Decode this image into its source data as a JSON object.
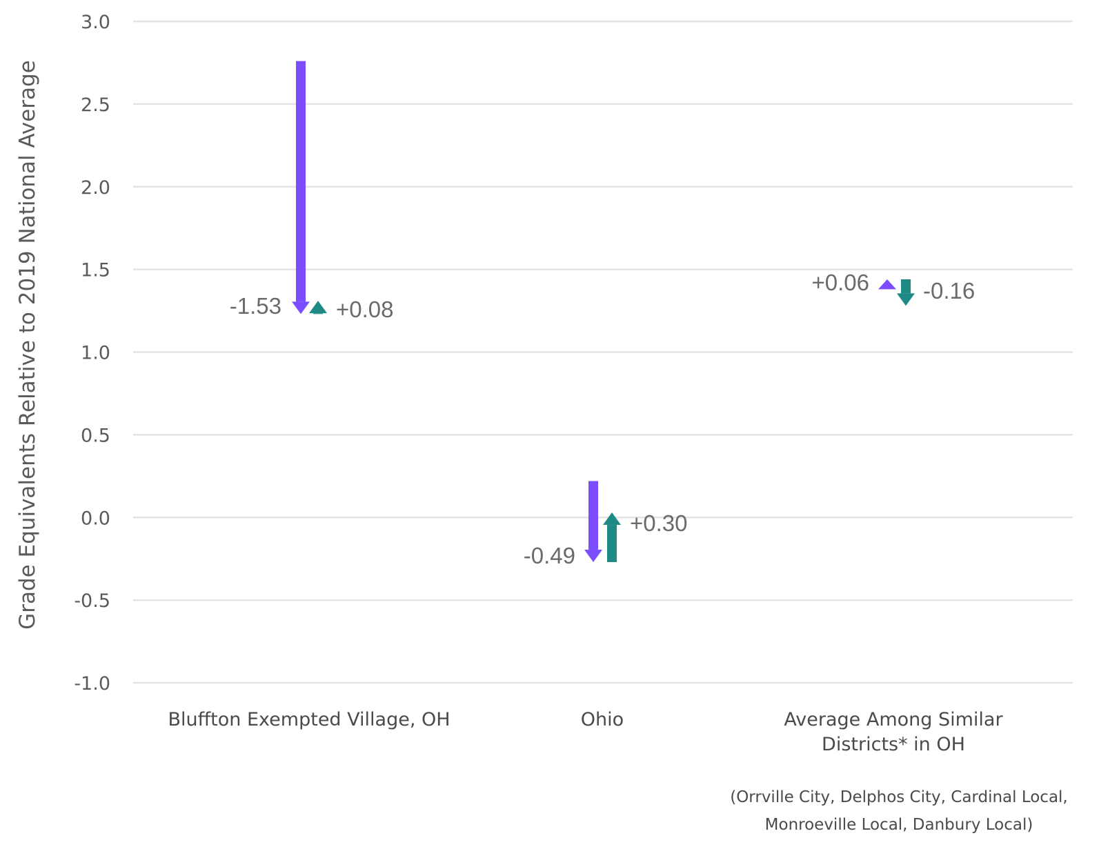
{
  "chart_data": {
    "type": "arrow",
    "ylabel": "Grade Equivalents Relative to 2019 National Average",
    "ylim": [
      -1.0,
      3.0
    ],
    "yticks": [
      "3.0",
      "2.5",
      "2.0",
      "1.5",
      "1.0",
      "0.5",
      "0.0",
      "-0.5",
      "-1.0"
    ],
    "grid": true,
    "categories": [
      {
        "label_lines": [
          "Bluffton Exempted Village, OH"
        ]
      },
      {
        "label_lines": [
          "Ohio"
        ]
      },
      {
        "label_lines": [
          "Average Among Similar",
          "Districts* in OH"
        ]
      }
    ],
    "note_lines": [
      "(Orrville City, Delphos City, Cardinal Local,",
      "Monroeville Local, Danbury Local)"
    ],
    "colors": {
      "first_change": "#7c4dff",
      "second_change": "#1f8a83"
    },
    "series": [
      {
        "starts": [
          2.76,
          0.22,
          1.38
        ],
        "changes": [
          -1.53,
          -0.49,
          0.06
        ],
        "labels": [
          "-1.53",
          "-0.49",
          "+0.06"
        ]
      },
      {
        "starts": [
          1.23,
          -0.27,
          1.44
        ],
        "changes": [
          0.08,
          0.3,
          -0.16
        ],
        "labels": [
          "+0.08",
          "+0.30",
          "-0.16"
        ]
      }
    ]
  }
}
